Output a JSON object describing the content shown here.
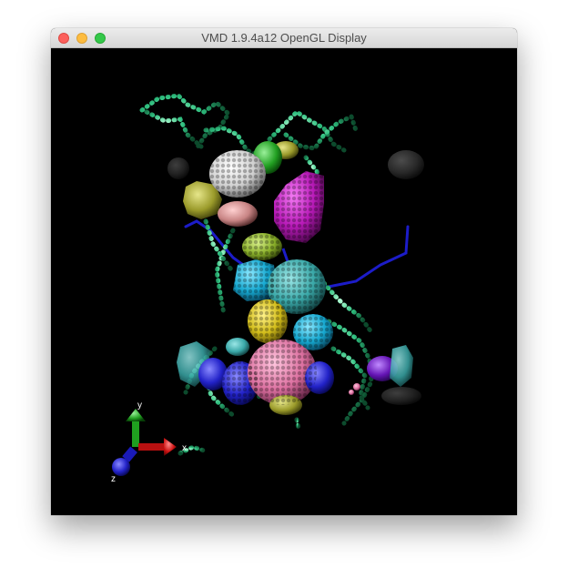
{
  "window": {
    "title": "VMD 1.9.4a12 OpenGL Display"
  },
  "axes": {
    "x_label": "x",
    "y_label": "y",
    "z_label": "z",
    "x_color": "#cc1111",
    "y_color": "#22aa22",
    "z_color": "#1a1acc"
  },
  "colors": {
    "background": "#000000",
    "tube": "#2fbf7f",
    "white": "#d9d9d9",
    "magenta": "#c21ec2",
    "cyan": "#1ab0d6",
    "teal": "#3fb3b3",
    "yellow": "#d6c21e",
    "pink": "#e07aa8",
    "blue": "#2a2ad0",
    "purple": "#6a1ab8",
    "olive": "#9a9a2a",
    "salmon": "#d68a8a",
    "slate": "#4a8a9a"
  }
}
